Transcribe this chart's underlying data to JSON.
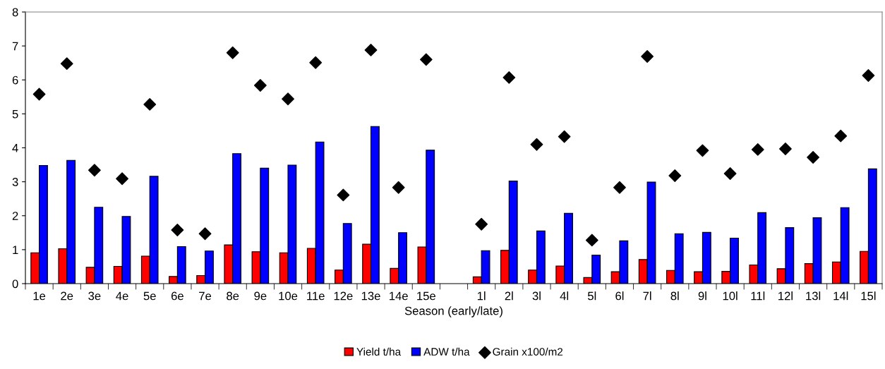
{
  "chart_data": {
    "type": "bar",
    "xlabel": "Season (early/late)",
    "categories": [
      "1e",
      "2e",
      "3e",
      "4e",
      "5e",
      "6e",
      "7e",
      "8e",
      "9e",
      "10e",
      "11e",
      "12e",
      "13e",
      "14e",
      "15e",
      null,
      "1l",
      "2l",
      "3l",
      "4l",
      "5l",
      "6l",
      "7l",
      "8l",
      "9l",
      "10l",
      "11l",
      "12l",
      "13l",
      "14l",
      "15l"
    ],
    "series": [
      {
        "name": "Yield t/ha",
        "color": "#ff0000",
        "values": [
          0.91,
          1.03,
          0.48,
          0.51,
          0.81,
          0.21,
          0.24,
          1.14,
          0.94,
          0.91,
          1.04,
          0.4,
          1.16,
          0.45,
          1.08,
          null,
          0.2,
          0.98,
          0.4,
          0.52,
          0.18,
          0.35,
          0.71,
          0.39,
          0.35,
          0.36,
          0.55,
          0.44,
          0.59,
          0.64,
          0.95
        ]
      },
      {
        "name": "ADW t/ha",
        "color": "#0000ff",
        "values": [
          3.48,
          3.63,
          2.25,
          1.98,
          3.16,
          1.09,
          0.96,
          3.83,
          3.4,
          3.49,
          4.17,
          1.77,
          4.63,
          1.5,
          3.93,
          null,
          0.97,
          3.02,
          1.55,
          2.07,
          0.84,
          1.26,
          2.99,
          1.47,
          1.51,
          1.34,
          2.09,
          1.65,
          1.94,
          2.24,
          3.38
        ]
      },
      {
        "name": "Grain x100/m2",
        "type": "scatter",
        "marker": "diamond",
        "color": "#000000",
        "values": [
          5.58,
          6.48,
          3.34,
          3.09,
          5.28,
          1.58,
          1.47,
          6.8,
          5.84,
          5.44,
          6.51,
          2.61,
          6.88,
          2.83,
          6.6,
          null,
          1.75,
          6.07,
          4.1,
          4.33,
          1.28,
          2.83,
          6.69,
          3.18,
          3.92,
          3.24,
          3.95,
          3.97,
          3.72,
          4.35,
          6.13
        ]
      }
    ],
    "ylim": [
      0,
      8
    ],
    "yticks": [
      0,
      1,
      2,
      3,
      4,
      5,
      6,
      7,
      8
    ],
    "grid": false,
    "legend": "bottom"
  }
}
